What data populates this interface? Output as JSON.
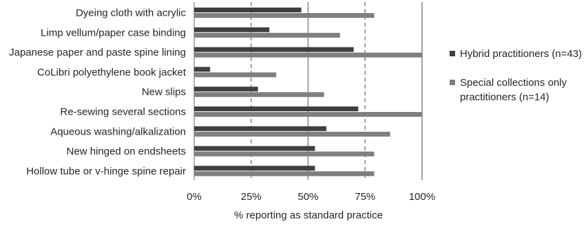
{
  "chart_data": {
    "type": "bar",
    "orientation": "horizontal",
    "categories": [
      "Dyeing cloth with acrylic",
      "Limp vellum/paper case binding",
      "Japanese paper and paste spine lining",
      "CoLibri polyethylene book jacket",
      "New slips",
      "Re-sewing several sections",
      "Aqueous washing/alkalization",
      "New hinged on endsheets",
      "Hollow tube or v-hinge spine repair"
    ],
    "series": [
      {
        "name": "Hybrid practitioners (n=43)",
        "color": "#3f3f3f",
        "values": [
          47,
          33,
          70,
          7,
          28,
          72,
          58,
          53,
          53
        ]
      },
      {
        "name": "Special collections only practitioners (n=14)",
        "legend_lines": [
          "Special collections only",
          "practitioners (n=14)"
        ],
        "color": "#7f7f7f",
        "values": [
          79,
          64,
          100,
          36,
          57,
          100,
          86,
          79,
          79
        ]
      }
    ],
    "xlim": [
      0,
      100
    ],
    "xticks": [
      "0%",
      "25%",
      "50%",
      "75%",
      "100%"
    ],
    "xlabel": "% reporting as standard practice",
    "grid": "vertical",
    "legend_position": "right"
  }
}
